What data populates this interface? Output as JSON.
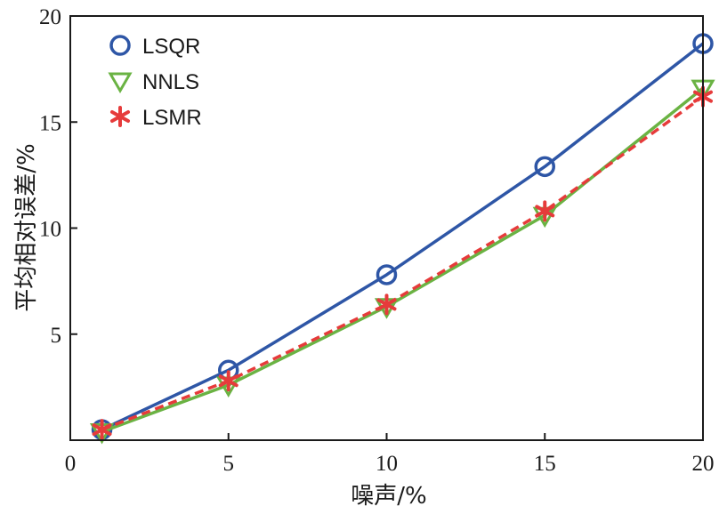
{
  "chart_data": {
    "type": "line",
    "xlabel": "噪声/%",
    "ylabel": "平均相对误差/%",
    "xlim": [
      0,
      20
    ],
    "ylim": [
      0,
      20
    ],
    "x_ticks": [
      "0",
      "5",
      "10",
      "15",
      "20"
    ],
    "y_ticks": [
      "5",
      "10",
      "15",
      "20"
    ],
    "x_tick_values": [
      0,
      5,
      10,
      15,
      20
    ],
    "y_tick_values": [
      5,
      10,
      15,
      20
    ],
    "grid": false,
    "legend_position": "top-left",
    "x": [
      1,
      5,
      10,
      15,
      20
    ],
    "series": [
      {
        "name": "LSQR",
        "values": [
          0.5,
          3.3,
          7.8,
          12.9,
          18.7
        ],
        "color": "#2e56a6",
        "marker": "circle",
        "line": "solid"
      },
      {
        "name": "NNLS",
        "values": [
          0.4,
          2.6,
          6.3,
          10.6,
          16.6
        ],
        "color": "#6ab343",
        "marker": "triangle-down",
        "line": "solid"
      },
      {
        "name": "LSMR",
        "values": [
          0.5,
          2.8,
          6.4,
          10.8,
          16.2
        ],
        "color": "#e63b3b",
        "marker": "asterisk",
        "line": "dashed"
      }
    ]
  }
}
